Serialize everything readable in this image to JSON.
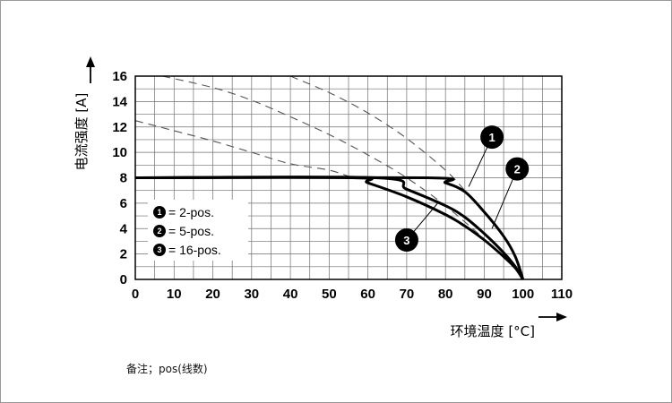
{
  "chart_data": {
    "type": "line",
    "xlabel": "环境温度 [°C]",
    "ylabel": "电流强度 [A]",
    "xlim": [
      0,
      110
    ],
    "ylim": [
      0,
      16
    ],
    "x_ticks": [
      0,
      10,
      20,
      30,
      40,
      50,
      60,
      70,
      80,
      90,
      100,
      110
    ],
    "y_ticks": [
      0,
      2,
      4,
      6,
      8,
      10,
      12,
      14,
      16
    ],
    "grid": true,
    "legend_position": "bottom-left",
    "series": [
      {
        "name": "2-pos.",
        "marker": "1",
        "limit": 8,
        "dashed": [
          [
            40,
            16
          ],
          [
            50,
            14.7
          ],
          [
            60,
            13.1
          ],
          [
            70,
            11.1
          ],
          [
            80,
            8.6
          ],
          [
            85,
            7.0
          ]
        ],
        "solid": [
          [
            0,
            8
          ],
          [
            75,
            8
          ],
          [
            80,
            7.6
          ],
          [
            85,
            6.9
          ],
          [
            90,
            5.3
          ],
          [
            95,
            3.4
          ],
          [
            98,
            1.8
          ],
          [
            100,
            0
          ]
        ]
      },
      {
        "name": "5-pos.",
        "marker": "2",
        "limit": 8,
        "dashed": [
          [
            7,
            16
          ],
          [
            20,
            15.1
          ],
          [
            30,
            14.1
          ],
          [
            40,
            12.8
          ],
          [
            50,
            11.4
          ],
          [
            60,
            9.8
          ],
          [
            70,
            8.0
          ],
          [
            80,
            5.8
          ],
          [
            90,
            3.2
          ]
        ],
        "solid": [
          [
            0,
            8
          ],
          [
            62,
            8
          ],
          [
            70,
            7.1
          ],
          [
            80,
            5.8
          ],
          [
            85,
            4.9
          ],
          [
            90,
            3.6
          ],
          [
            95,
            2.1
          ],
          [
            98,
            1.0
          ],
          [
            100,
            0
          ]
        ]
      },
      {
        "name": "16-pos.",
        "marker": "3",
        "limit": 8,
        "dashed": [
          [
            0,
            12.5
          ],
          [
            10,
            11.7
          ],
          [
            20,
            10.9
          ],
          [
            30,
            10.0
          ],
          [
            40,
            9.1
          ],
          [
            50,
            8.6
          ],
          [
            56,
            8.0
          ]
        ],
        "solid": [
          [
            0,
            8
          ],
          [
            56,
            8
          ],
          [
            60,
            7.6
          ],
          [
            70,
            6.5
          ],
          [
            80,
            5.1
          ],
          [
            85,
            4.2
          ],
          [
            90,
            3.1
          ],
          [
            95,
            1.8
          ],
          [
            98,
            0.9
          ],
          [
            100,
            0
          ]
        ]
      }
    ],
    "markers": [
      {
        "label": "1",
        "x": 92,
        "y": 11.2,
        "line_to": [
          86,
          7.3
        ]
      },
      {
        "label": "2",
        "x": 98.5,
        "y": 8.7,
        "line_to": [
          92,
          4.0
        ]
      },
      {
        "label": "3",
        "x": 70,
        "y": 3.1,
        "line_to": [
          78,
          6.0
        ]
      }
    ],
    "legend": [
      {
        "marker": "1",
        "text": "= 2-pos."
      },
      {
        "marker": "2",
        "text": "= 5-pos."
      },
      {
        "marker": "3",
        "text": "= 16-pos."
      }
    ]
  },
  "footnote": "备注；pos(线数)"
}
